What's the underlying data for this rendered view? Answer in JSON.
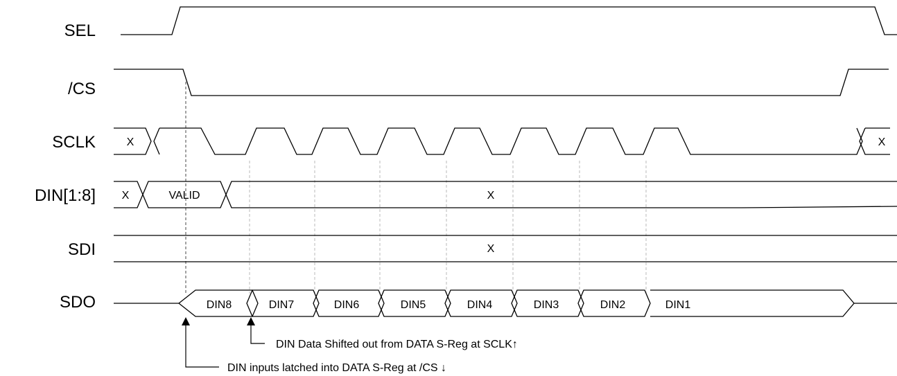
{
  "signals": {
    "sel": "SEL",
    "cs": "/CS",
    "sclk": "SCLK",
    "din": "DIN[1:8]",
    "sdi": "SDI",
    "sdo": "SDO"
  },
  "cells": {
    "sclk_x_start": "X",
    "sclk_x_end": "X",
    "din_x_start": "X",
    "din_valid": "VALID",
    "din_x_rest": "X",
    "sdi_x": "X",
    "sdo_bits": [
      "DIN8",
      "DIN7",
      "DIN6",
      "DIN5",
      "DIN4",
      "DIN3",
      "DIN2",
      "DIN1"
    ]
  },
  "annotations": {
    "shift_note": "DIN Data Shifted out from DATA S-Reg at SCLK↑",
    "latch_note": "DIN inputs latched into DATA S-Reg at /CS ↓"
  }
}
